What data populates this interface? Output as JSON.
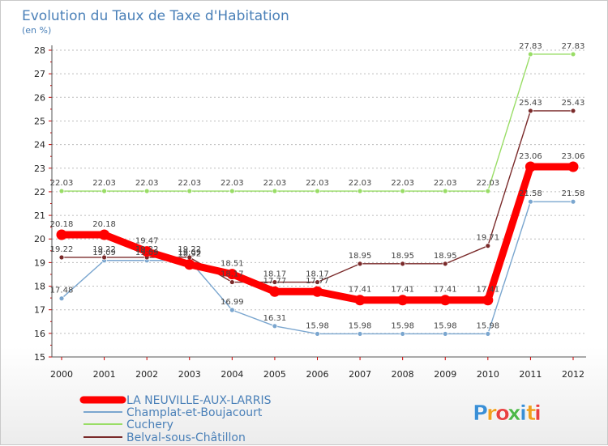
{
  "chart_data": {
    "type": "line",
    "title": "Evolution du Taux de Taxe d'Habitation",
    "subtitle": "(en %)",
    "x": [
      "2000",
      "2001",
      "2002",
      "2003",
      "2004",
      "2005",
      "2006",
      "2007",
      "2008",
      "2009",
      "2010",
      "2011",
      "2012"
    ],
    "ylim": [
      15,
      28
    ],
    "yticks": [
      "15",
      "16",
      "17",
      "18",
      "19",
      "20",
      "21",
      "22",
      "23",
      "24",
      "25",
      "26",
      "27",
      "28"
    ],
    "grid": "horizontal dashed",
    "legend_position": "bottom-left",
    "series": [
      {
        "name": "LA NEUVILLE-AUX-LARRIS",
        "color": "#ff0000",
        "values": [
          20.18,
          20.18,
          19.47,
          18.92,
          18.51,
          17.77,
          17.77,
          17.41,
          17.41,
          17.41,
          17.41,
          23.06,
          23.06
        ],
        "labels": [
          "20.18",
          "20.18",
          "19.47",
          "18.92",
          "18.51",
          "17.77",
          "17.77",
          "17.41",
          "17.41",
          "17.41",
          "17.41",
          "23.06",
          "23.06"
        ]
      },
      {
        "name": "Champlat-et-Boujacourt",
        "color": "#7aa6cf",
        "values": [
          17.48,
          19.09,
          19.09,
          19.09,
          16.99,
          16.31,
          15.98,
          15.98,
          15.98,
          15.98,
          15.98,
          21.58,
          21.58
        ],
        "labels": [
          "17.48",
          "19.09",
          "19.09",
          "19.09",
          "16.99",
          "16.31",
          "15.98",
          "15.98",
          "15.98",
          "15.98",
          "15.98",
          "21.58",
          "21.58"
        ]
      },
      {
        "name": "Cuchery",
        "color": "#99dd66",
        "values": [
          22.03,
          22.03,
          22.03,
          22.03,
          22.03,
          22.03,
          22.03,
          22.03,
          22.03,
          22.03,
          22.03,
          27.83,
          27.83
        ],
        "labels": [
          "22.03",
          "22.03",
          "22.03",
          "22.03",
          "22.03",
          "22.03",
          "22.03",
          "22.03",
          "22.03",
          "22.03",
          "22.03",
          "27.83",
          "27.83"
        ]
      },
      {
        "name": "Belval-sous-Châtillon",
        "color": "#7a2a2a",
        "values": [
          19.22,
          19.22,
          19.22,
          19.22,
          18.17,
          18.17,
          18.17,
          18.95,
          18.95,
          18.95,
          19.71,
          25.43,
          25.43
        ],
        "labels": [
          "19.22",
          "19.22",
          "19.22",
          "19.22",
          "18.17",
          "18.17",
          "18.17",
          "18.95",
          "18.95",
          "18.95",
          "19.71",
          "25.43",
          "25.43"
        ]
      }
    ]
  },
  "logo": {
    "text": "Proxiti",
    "letters": [
      {
        "ch": "P",
        "color": "#3a8fd6"
      },
      {
        "ch": "r",
        "color": "#f0a020"
      },
      {
        "ch": "o",
        "color": "#e84040"
      },
      {
        "ch": "x",
        "color": "#4cb848"
      },
      {
        "ch": "i",
        "color": "#3a8fd6"
      },
      {
        "ch": "t",
        "color": "#f0a020"
      },
      {
        "ch": "i",
        "color": "#e84040"
      }
    ]
  }
}
